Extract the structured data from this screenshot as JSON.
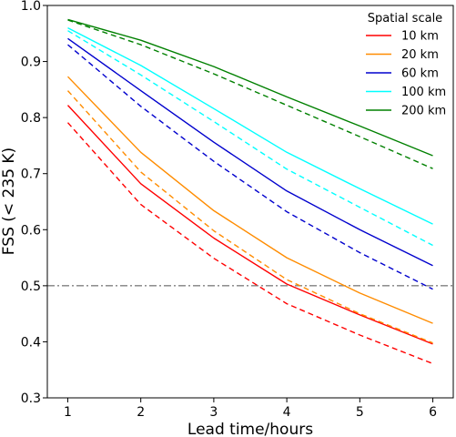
{
  "chart_data": {
    "type": "line",
    "title": "",
    "xlabel": "Lead time/hours",
    "ylabel": "FSS (< 235 K)",
    "xlim": [
      0.72,
      6.28
    ],
    "ylim": [
      0.3,
      1.0
    ],
    "xticks": [
      1,
      2,
      3,
      4,
      5,
      6
    ],
    "yticks": [
      0.3,
      0.4,
      0.5,
      0.6,
      0.7,
      0.8,
      0.9,
      1.0
    ],
    "xtick_labels": [
      "1",
      "2",
      "3",
      "4",
      "5",
      "6"
    ],
    "ytick_labels": [
      "0.3",
      "0.4",
      "0.5",
      "0.6",
      "0.7",
      "0.8",
      "0.9",
      "1.0"
    ],
    "grid": false,
    "x": [
      1,
      2,
      3,
      4,
      5,
      6
    ],
    "reference_line": {
      "y": 0.5,
      "style": "dash-dot",
      "color": "#808080"
    },
    "legend": {
      "title": "Spatial scale",
      "placement": "top-right",
      "entries": [
        "10 km",
        "20 km",
        "60 km",
        "100 km",
        "200 km"
      ]
    },
    "series": [
      {
        "name": "10 km",
        "color": "#ff0000",
        "style": "solid",
        "values": [
          0.822,
          0.682,
          0.585,
          0.503,
          0.448,
          0.396
        ]
      },
      {
        "color": "#ff0000",
        "style": "dashed",
        "values": [
          0.791,
          0.645,
          0.549,
          0.468,
          0.412,
          0.361
        ]
      },
      {
        "name": "20 km",
        "color": "#ff8c00",
        "style": "solid",
        "values": [
          0.873,
          0.738,
          0.634,
          0.55,
          0.487,
          0.433
        ]
      },
      {
        "color": "#ff8c00",
        "style": "dashed",
        "values": [
          0.848,
          0.703,
          0.598,
          0.511,
          0.45,
          0.398
        ]
      },
      {
        "name": "60 km",
        "color": "#0000cd",
        "style": "solid",
        "values": [
          0.941,
          0.848,
          0.756,
          0.669,
          0.6,
          0.536
        ]
      },
      {
        "color": "#0000cd",
        "style": "dashed",
        "values": [
          0.93,
          0.82,
          0.722,
          0.632,
          0.559,
          0.494
        ]
      },
      {
        "name": "100 km",
        "color": "#00ffff",
        "style": "solid",
        "values": [
          0.96,
          0.893,
          0.816,
          0.738,
          0.673,
          0.61
        ]
      },
      {
        "color": "#00ffff",
        "style": "dashed",
        "values": [
          0.955,
          0.876,
          0.793,
          0.708,
          0.64,
          0.572
        ]
      },
      {
        "name": "200 km",
        "color": "#008000",
        "style": "solid",
        "values": [
          0.975,
          0.938,
          0.891,
          0.837,
          0.785,
          0.732
        ]
      },
      {
        "color": "#008000",
        "style": "dashed",
        "values": [
          0.974,
          0.93,
          0.878,
          0.822,
          0.766,
          0.709
        ]
      }
    ]
  }
}
